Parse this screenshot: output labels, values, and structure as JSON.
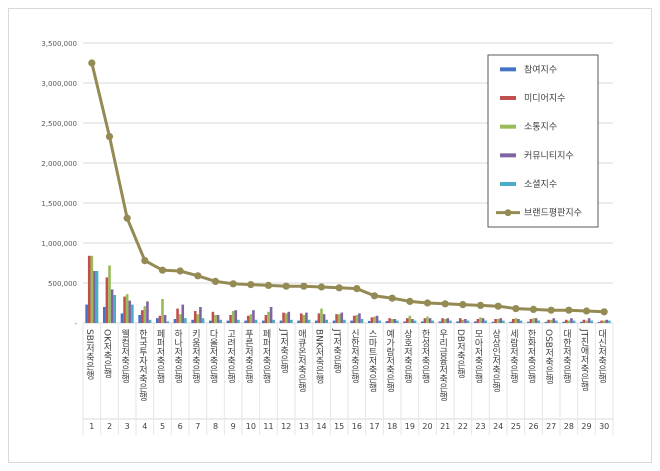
{
  "chart_data": {
    "type": "bar",
    "title": "",
    "xlabel": "",
    "ylabel": "",
    "ylim": [
      0,
      3500000
    ],
    "yticks": [
      0,
      500000,
      1000000,
      1500000,
      2000000,
      2500000,
      3000000,
      3500000
    ],
    "ytick_labels": [
      "-",
      "500,000",
      "1,000,000",
      "1,500,000",
      "2,000,000",
      "2,500,000",
      "3,000,000",
      "3,500,000"
    ],
    "grid": true,
    "legend_position": "top-right",
    "categories": [
      "SBI저축은행",
      "OK저축은행",
      "웰컴저축은행",
      "한국투자저축은행",
      "페퍼저축은행",
      "하나저축은행",
      "키움저축은행",
      "다올저축은행",
      "고려저축은행",
      "푸른저축은행",
      "페퍼저축은행",
      "JT저축은행",
      "애큐온저축은행",
      "BNK저축은행",
      "JT저축은행",
      "신한저축은행",
      "스마트저축은행",
      "예가람저축은행",
      "상호저축은행",
      "한성저축은행",
      "우리금융저축은행",
      "DB저축은행",
      "모아저축은행",
      "상상인저축은행",
      "세람저축은행",
      "한화저축은행",
      "OSB저축은행",
      "대한저축은행",
      "JT친애저축은행",
      "대신저축은행"
    ],
    "ranks": [
      "1",
      "2",
      "3",
      "4",
      "5",
      "6",
      "7",
      "8",
      "9",
      "10",
      "11",
      "12",
      "13",
      "14",
      "15",
      "16",
      "17",
      "18",
      "19",
      "20",
      "21",
      "22",
      "23",
      "24",
      "25",
      "26",
      "27",
      "28",
      "29",
      "30"
    ],
    "series": [
      {
        "name": "참여지수",
        "type": "bar",
        "color": "#4472c4",
        "values": [
          230000,
          200000,
          120000,
          100000,
          60000,
          50000,
          40000,
          30000,
          30000,
          30000,
          30000,
          30000,
          30000,
          30000,
          30000,
          30000,
          25000,
          25000,
          20000,
          20000,
          20000,
          20000,
          20000,
          15000,
          15000,
          15000,
          15000,
          15000,
          15000,
          12000
        ]
      },
      {
        "name": "미디어지수",
        "type": "bar",
        "color": "#c0504d",
        "values": [
          840000,
          570000,
          330000,
          160000,
          90000,
          180000,
          150000,
          140000,
          100000,
          90000,
          100000,
          130000,
          120000,
          120000,
          110000,
          90000,
          70000,
          60000,
          60000,
          60000,
          60000,
          60000,
          50000,
          50000,
          50000,
          50000,
          40000,
          40000,
          40000,
          30000
        ]
      },
      {
        "name": "소통지수",
        "type": "bar",
        "color": "#9bbb59",
        "values": [
          840000,
          720000,
          360000,
          210000,
          300000,
          110000,
          110000,
          100000,
          150000,
          110000,
          140000,
          120000,
          100000,
          180000,
          110000,
          100000,
          80000,
          50000,
          90000,
          80000,
          50000,
          40000,
          70000,
          50000,
          60000,
          60000,
          40000,
          30000,
          30000,
          30000
        ]
      },
      {
        "name": "커뮤니티지수",
        "type": "bar",
        "color": "#8064a2",
        "values": [
          650000,
          420000,
          280000,
          270000,
          100000,
          230000,
          200000,
          100000,
          160000,
          160000,
          200000,
          140000,
          130000,
          110000,
          130000,
          120000,
          90000,
          50000,
          50000,
          60000,
          60000,
          50000,
          60000,
          60000,
          50000,
          60000,
          60000,
          60000,
          60000,
          40000
        ]
      },
      {
        "name": "소셜지수",
        "type": "bar",
        "color": "#4bacc6",
        "values": [
          650000,
          350000,
          230000,
          40000,
          20000,
          60000,
          60000,
          40000,
          40000,
          40000,
          40000,
          40000,
          40000,
          40000,
          40000,
          50000,
          30000,
          30000,
          30000,
          30000,
          30000,
          30000,
          30000,
          30000,
          30000,
          30000,
          30000,
          30000,
          30000,
          30000
        ]
      },
      {
        "name": "브랜드평판지수",
        "type": "line",
        "color": "#948a54",
        "values": [
          3250000,
          2330000,
          1310000,
          780000,
          660000,
          650000,
          590000,
          520000,
          490000,
          480000,
          470000,
          460000,
          460000,
          450000,
          440000,
          430000,
          340000,
          310000,
          270000,
          250000,
          240000,
          230000,
          220000,
          210000,
          180000,
          170000,
          160000,
          160000,
          150000,
          140000
        ]
      }
    ]
  }
}
